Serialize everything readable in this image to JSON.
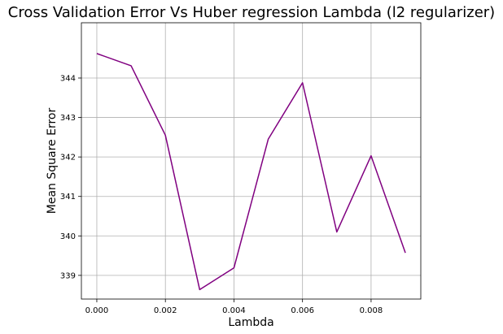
{
  "chart_data": {
    "type": "line",
    "title": "Cross Validation Error Vs Huber regression Lambda (l2 regularizer)",
    "xlabel": "Lambda",
    "ylabel": "Mean Square Error",
    "xlim": [
      -0.00045,
      0.00945
    ],
    "ylim": [
      338.4,
      345.4
    ],
    "x_ticks": [
      0.0,
      0.002,
      0.004,
      0.006,
      0.008
    ],
    "x_tick_labels": [
      "0.000",
      "0.002",
      "0.004",
      "0.006",
      "0.008"
    ],
    "y_ticks": [
      339,
      340,
      341,
      342,
      343,
      344
    ],
    "y_tick_labels": [
      "339",
      "340",
      "341",
      "342",
      "343",
      "344"
    ],
    "grid": true,
    "series": [
      {
        "color": "#800080",
        "x": [
          0.0,
          0.001,
          0.002,
          0.003,
          0.004,
          0.005,
          0.006,
          0.007,
          0.008,
          0.009
        ],
        "y": [
          344.62,
          344.31,
          342.55,
          338.64,
          339.19,
          342.45,
          343.88,
          340.1,
          342.03,
          339.57
        ]
      }
    ]
  }
}
